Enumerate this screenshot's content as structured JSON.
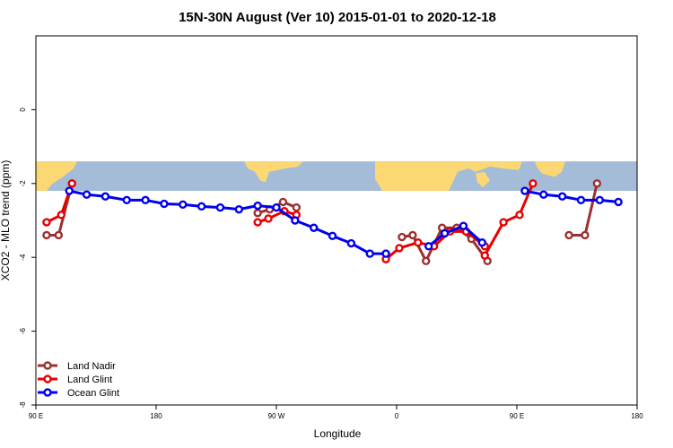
{
  "chart_data": {
    "type": "line",
    "title": "15N-30N August (Ver 10)   2015-01-01 to 2020-12-18",
    "xlabel": "Longitude",
    "ylabel": "XCO2 - MLO trend (ppm)",
    "xlim": [
      90,
      450
    ],
    "ylim": [
      -8,
      2
    ],
    "x_ticks": [
      {
        "value": 90,
        "label": "90 E"
      },
      {
        "value": 180,
        "label": "180"
      },
      {
        "value": 270,
        "label": "90 W"
      },
      {
        "value": 360,
        "label": "0"
      },
      {
        "value": 450,
        "label": "90 E"
      },
      {
        "value": 540,
        "label": "180"
      }
    ],
    "y_ticks": [
      {
        "value": 0,
        "label": "0"
      },
      {
        "value": -2,
        "label": "-2"
      },
      {
        "value": -4,
        "label": "-4"
      },
      {
        "value": -6,
        "label": "-6"
      },
      {
        "value": -8,
        "label": "-8"
      }
    ],
    "map_band": {
      "ylim": [
        -2.2,
        -1.4
      ],
      "ocean_color": "#a5bcd9",
      "land_color": "#fbd873"
    },
    "series": [
      {
        "name": "Land Nadir",
        "color": "#9c3030",
        "segments": [
          {
            "x": [
              98,
              107,
              117
            ],
            "y": [
              -3.4,
              -3.4,
              -2.0
            ]
          },
          {
            "x": [
              256,
              265,
              275,
              285
            ],
            "y": [
              -2.8,
              -2.7,
              -2.5,
              -2.65
            ]
          },
          {
            "x": [
              364,
              372,
              382,
              394,
              405,
              416,
              428
            ],
            "y": [
              -3.45,
              -3.4,
              -4.1,
              -3.2,
              -3.2,
              -3.5,
              -4.1
            ]
          },
          {
            "x": [
              489,
              501,
              510
            ],
            "y": [
              -3.4,
              -3.4,
              -2.0
            ]
          }
        ]
      },
      {
        "name": "Land Glint",
        "color": "#e80000",
        "segments": [
          {
            "x": [
              98,
              109,
              117
            ],
            "y": [
              -3.05,
              -2.85,
              -2.0
            ]
          },
          {
            "x": [
              256,
              264,
              276,
              285
            ],
            "y": [
              -3.05,
              -2.95,
              -2.75,
              -2.85
            ]
          },
          {
            "x": [
              352,
              362,
              376,
              388,
              400,
              412,
              426
            ],
            "y": [
              -4.05,
              -3.75,
              -3.6,
              -3.7,
              -3.3,
              -3.3,
              -3.7
            ]
          },
          {
            "x": [
              426,
              440,
              452,
              462
            ],
            "y": [
              -3.95,
              -3.05,
              -2.85,
              -2.0
            ]
          }
        ]
      },
      {
        "name": "Ocean Glint",
        "color": "#0000ee",
        "segments": [
          {
            "x": [
              115,
              128,
              142,
              158,
              172,
              186,
              200,
              214,
              228,
              242,
              256,
              270,
              284,
              298,
              312,
              326,
              340,
              352
            ],
            "y": [
              -2.2,
              -2.3,
              -2.35,
              -2.45,
              -2.45,
              -2.55,
              -2.57,
              -2.62,
              -2.65,
              -2.7,
              -2.6,
              -2.65,
              -3.0,
              -3.2,
              -3.42,
              -3.62,
              -3.9,
              -3.9
            ]
          },
          {
            "x": [
              384,
              396,
              410,
              424
            ],
            "y": [
              -3.7,
              -3.35,
              -3.15,
              -3.6
            ]
          },
          {
            "x": [
              456,
              470,
              484,
              498,
              512,
              526
            ],
            "y": [
              -2.2,
              -2.3,
              -2.35,
              -2.45,
              -2.45,
              -2.5
            ]
          }
        ]
      }
    ],
    "legend": {
      "position": "bottom-left"
    },
    "grid": false
  }
}
